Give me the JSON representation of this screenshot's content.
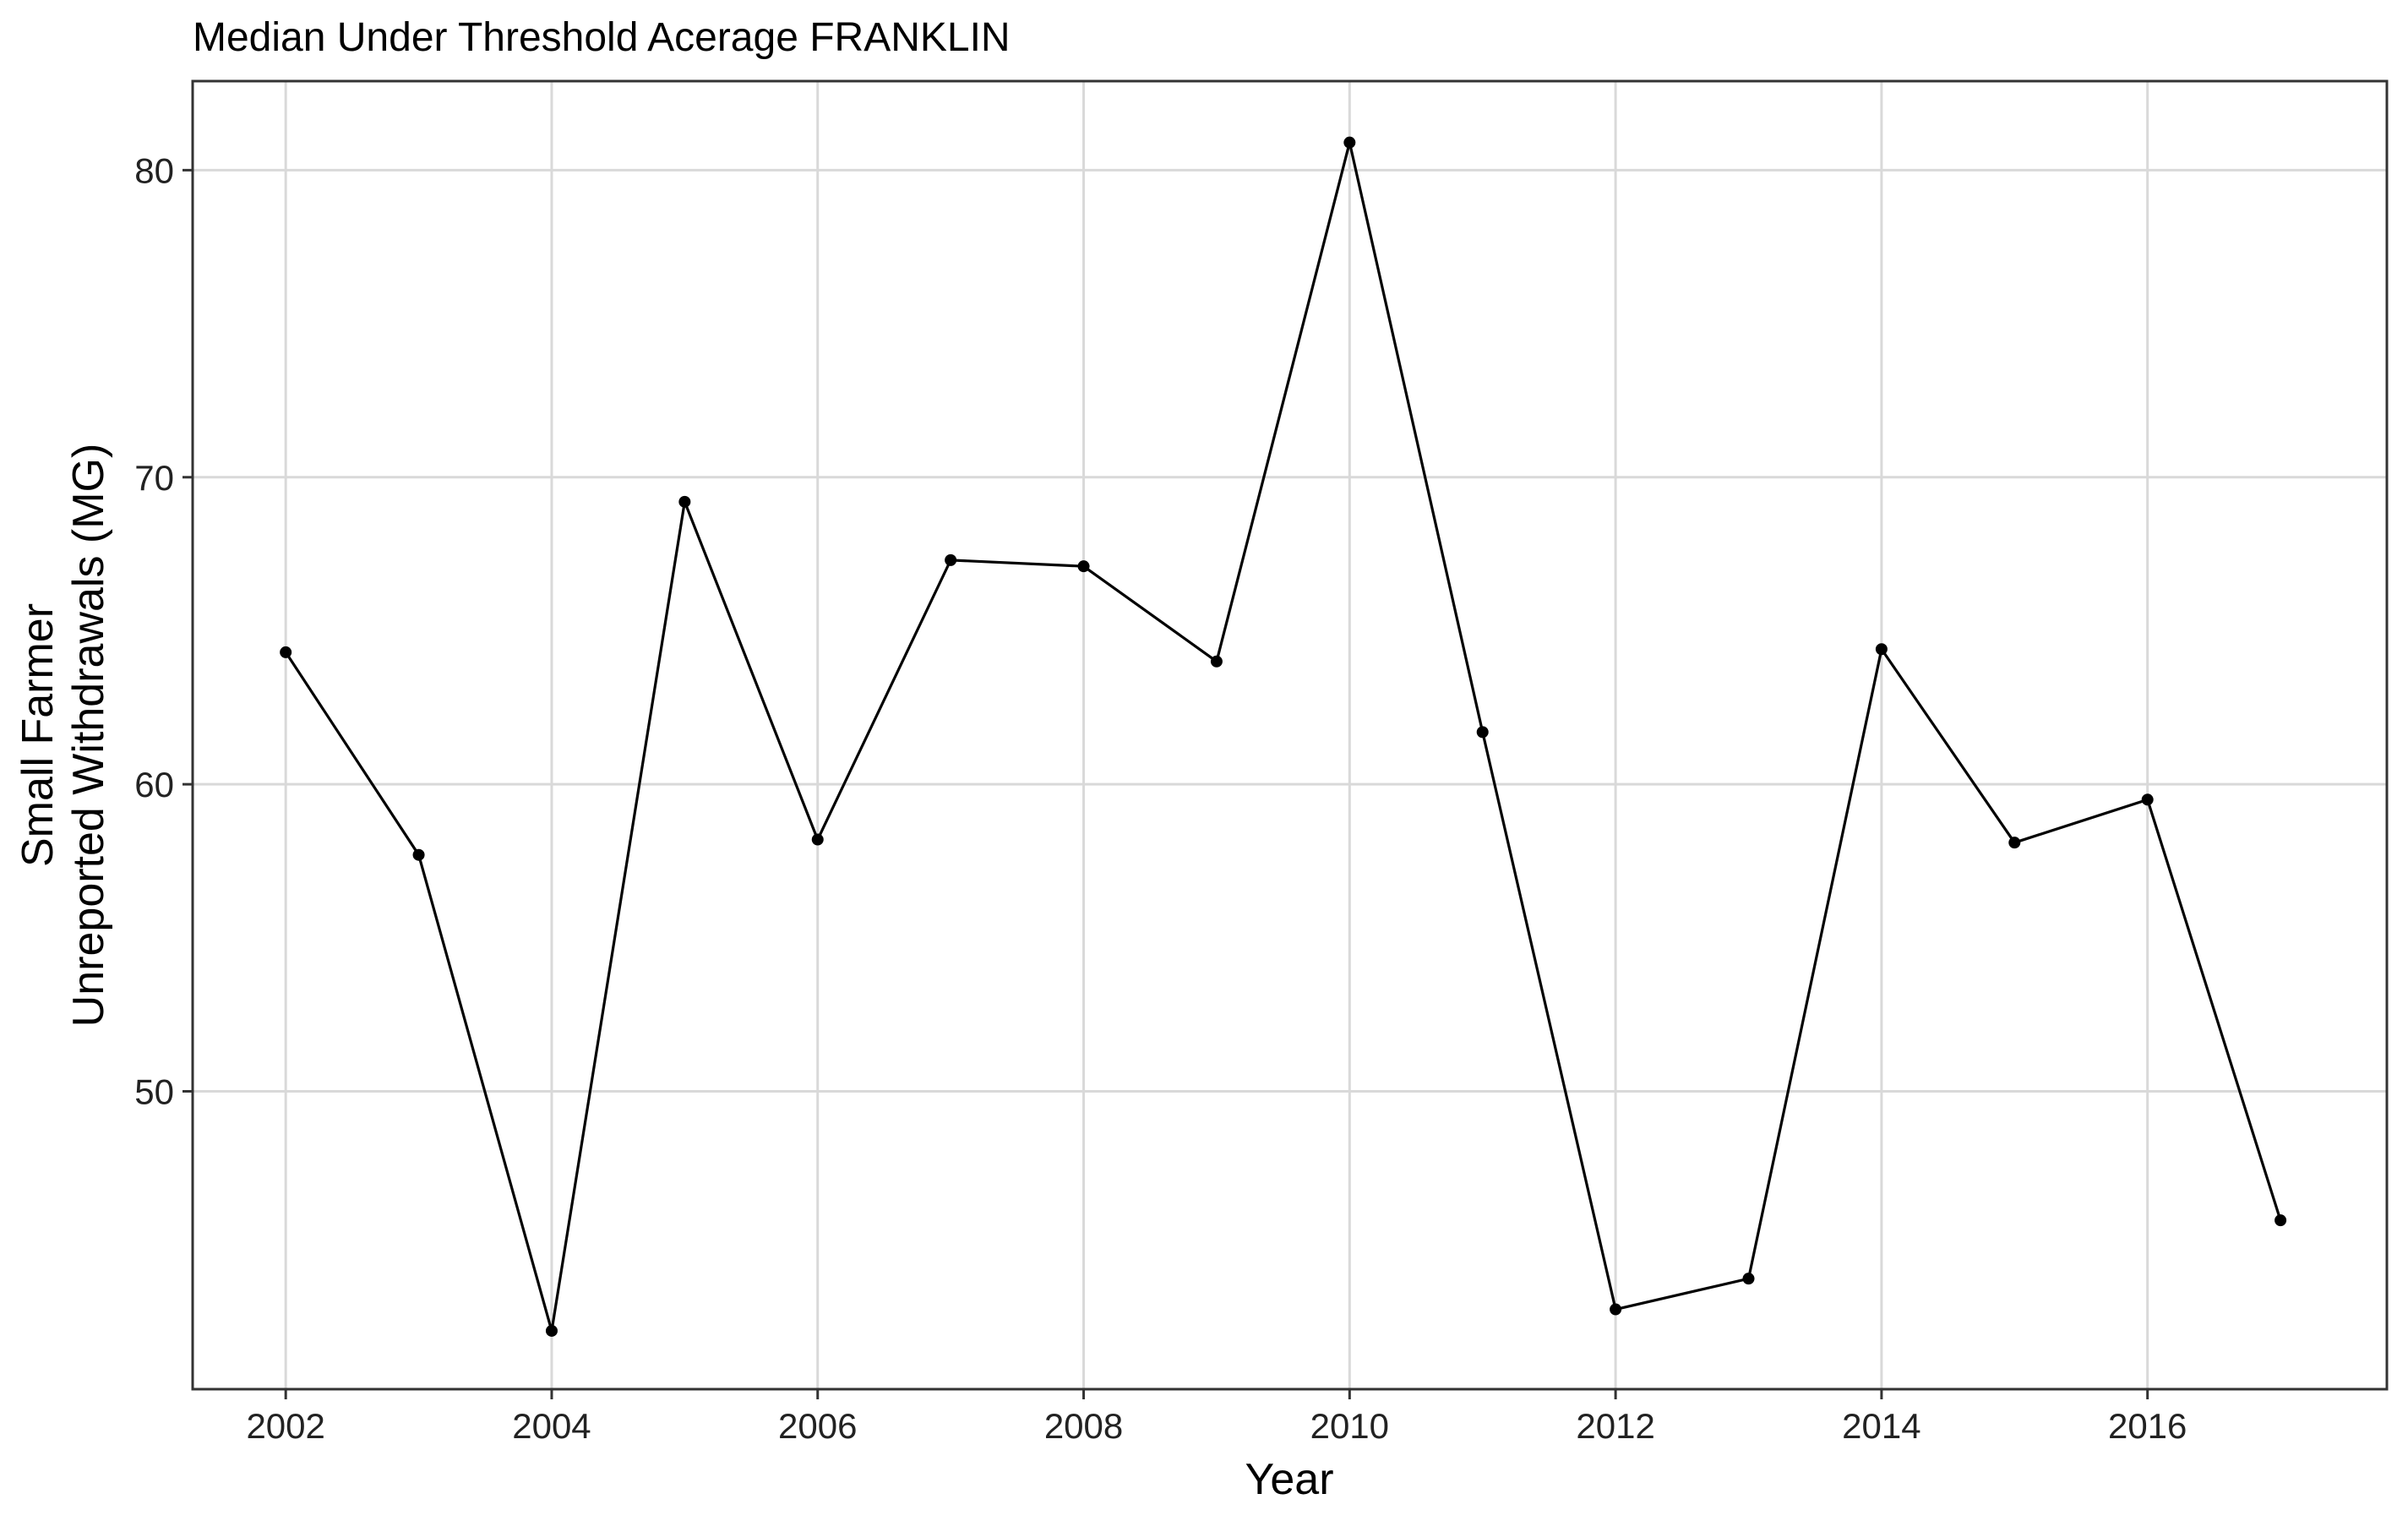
{
  "chart_data": {
    "type": "line",
    "title": "Median Under Threshold Acerage FRANKLIN",
    "xlabel": "Year",
    "ylabel_lines": [
      "Small Farmer",
      "Unreported Withdrawals (MG)"
    ],
    "xlim": [
      2001.3,
      2017.8
    ],
    "ylim": [
      40.3,
      82.9
    ],
    "x_ticks": [
      2002,
      2004,
      2006,
      2008,
      2010,
      2012,
      2014,
      2016
    ],
    "x_tick_labels": [
      "2002",
      "2004",
      "2006",
      "2008",
      "2010",
      "2012",
      "2014",
      "2016"
    ],
    "y_ticks": [
      50,
      60,
      70,
      80
    ],
    "y_tick_labels": [
      "50",
      "60",
      "70",
      "80"
    ],
    "grid": true,
    "legend": "none",
    "series": [
      {
        "color": "#000000",
        "x": [
          2002,
          2003,
          2004,
          2005,
          2006,
          2007,
          2008,
          2009,
          2010,
          2011,
          2012,
          2013,
          2014,
          2015,
          2016,
          2017
        ],
        "values": [
          64.3,
          57.7,
          42.2,
          69.2,
          58.2,
          67.3,
          67.1,
          64.0,
          80.9,
          61.7,
          42.9,
          43.9,
          64.4,
          58.1,
          59.5,
          45.8
        ]
      }
    ]
  }
}
